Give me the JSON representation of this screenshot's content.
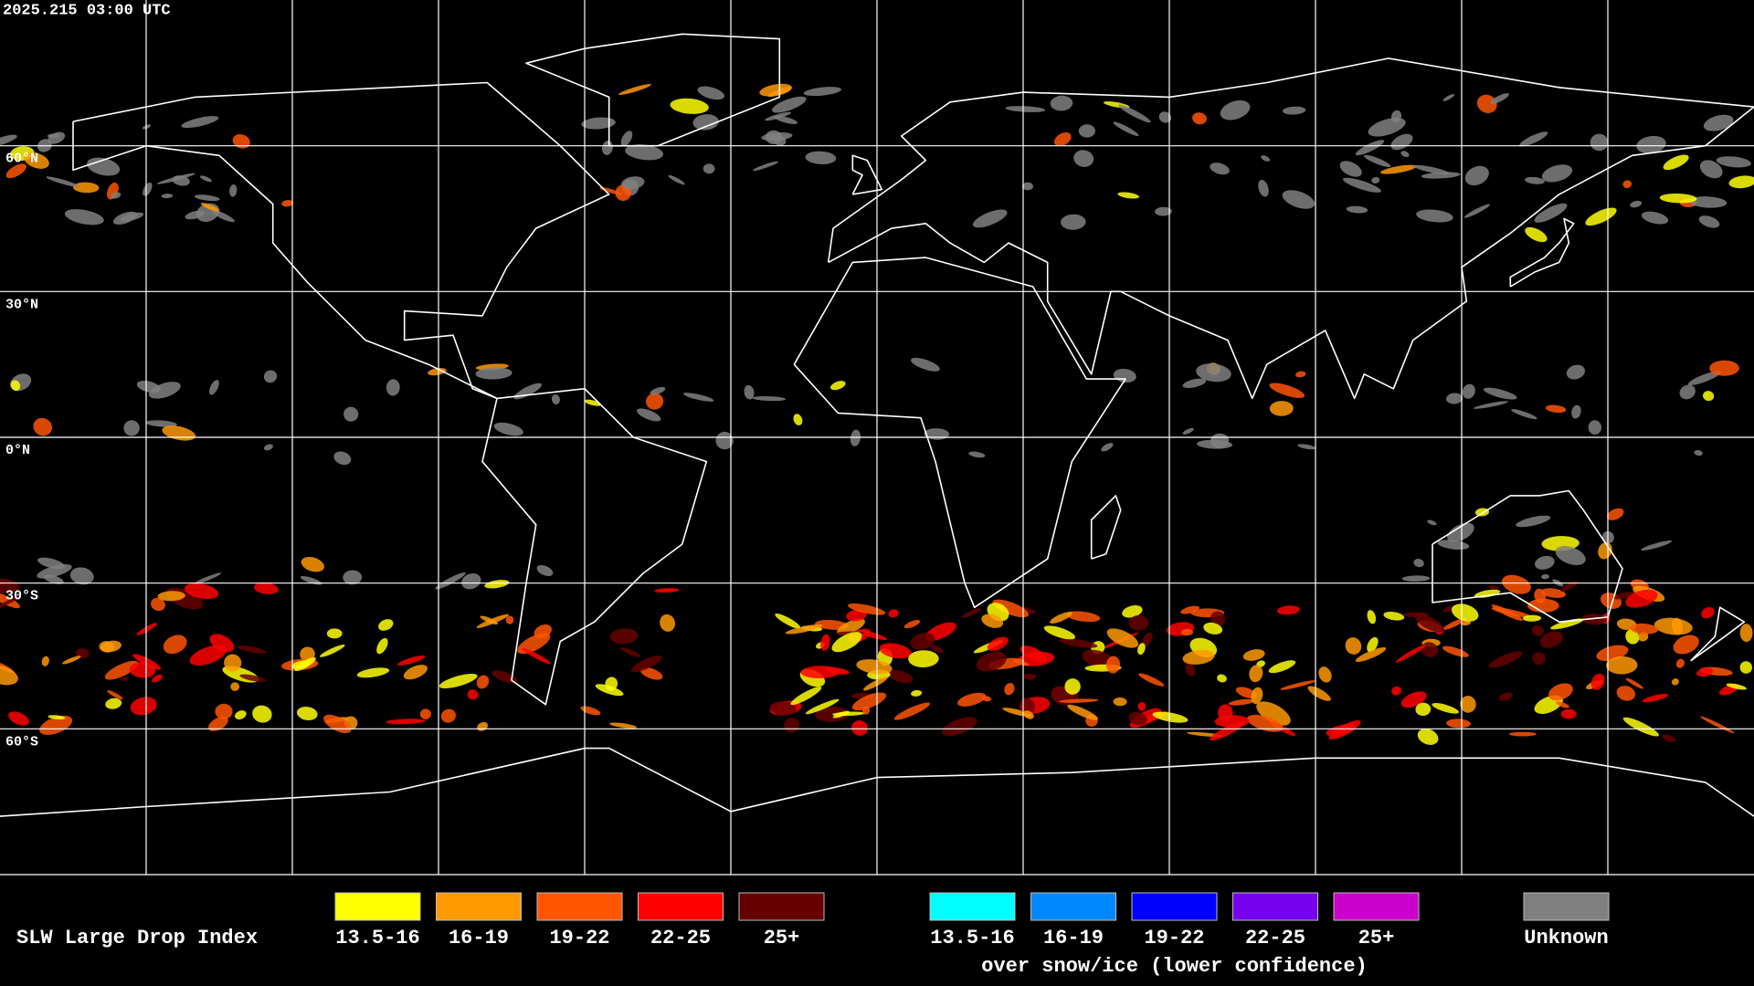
{
  "header": {
    "timestamp": "2025.215 03:00 UTC"
  },
  "map": {
    "latitude_labels": [
      "60°N",
      "30°N",
      "0°N",
      "30°S",
      "60°S"
    ]
  },
  "legend": {
    "title": "SLW Large Drop Index",
    "groups": [
      {
        "items": [
          {
            "label": "13.5-16",
            "color": "#ffff00"
          },
          {
            "label": "16-19",
            "color": "#ff9900"
          },
          {
            "label": "19-22",
            "color": "#ff5500"
          },
          {
            "label": "22-25",
            "color": "#ff0000"
          },
          {
            "label": "25+",
            "color": "#660000"
          }
        ]
      },
      {
        "items": [
          {
            "label": "13.5-16",
            "color": "#00ffff"
          },
          {
            "label": "16-19",
            "color": "#0088ff"
          },
          {
            "label": "19-22",
            "color": "#0000ff"
          },
          {
            "label": "22-25",
            "color": "#7700ee"
          },
          {
            "label": "25+",
            "color": "#cc00cc"
          }
        ],
        "note": "over snow/ice (lower confidence)"
      },
      {
        "items": [
          {
            "label": "Unknown",
            "color": "#808080"
          }
        ]
      }
    ]
  }
}
